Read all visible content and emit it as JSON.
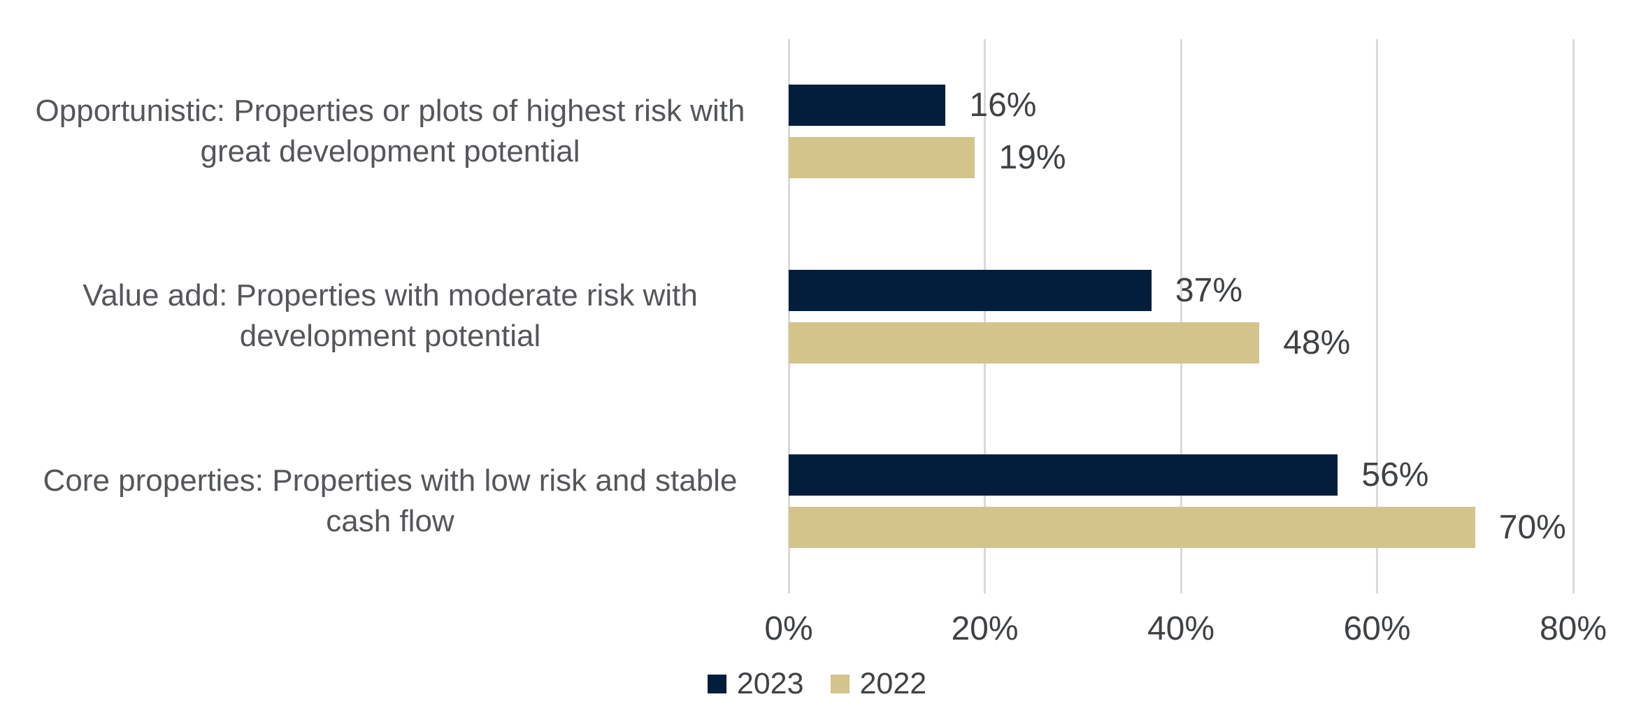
{
  "chart_data": {
    "type": "bar",
    "orientation": "horizontal",
    "title": "",
    "categories": [
      "Opportunistic: Properties or plots of highest risk with great development potential",
      "Value add: Properties with moderate risk with development potential",
      "Core properties: Properties with low risk and stable cash flow"
    ],
    "series": [
      {
        "name": "2023",
        "color": "#021E3C",
        "values": [
          16,
          37,
          56
        ]
      },
      {
        "name": "2022",
        "color": "#D3C48C",
        "values": [
          19,
          48,
          70
        ]
      }
    ],
    "data_labels": [
      [
        "16%",
        "37%",
        "56%"
      ],
      [
        "19%",
        "48%",
        "70%"
      ]
    ],
    "value_suffix": "%",
    "xlim": [
      0,
      80
    ],
    "x_ticks": [
      {
        "value": 0,
        "label": "0%"
      },
      {
        "value": 20,
        "label": "20%"
      },
      {
        "value": 40,
        "label": "40%"
      },
      {
        "value": 60,
        "label": "60%"
      },
      {
        "value": 80,
        "label": "80%"
      }
    ],
    "grid": "vertical gridlines on",
    "legend_position": "bottom-center",
    "colors": {
      "gridline": "#D9D9D9",
      "tick_text": "#3F4245",
      "category_text": "#54565A",
      "background": "#FFFFFF"
    }
  }
}
